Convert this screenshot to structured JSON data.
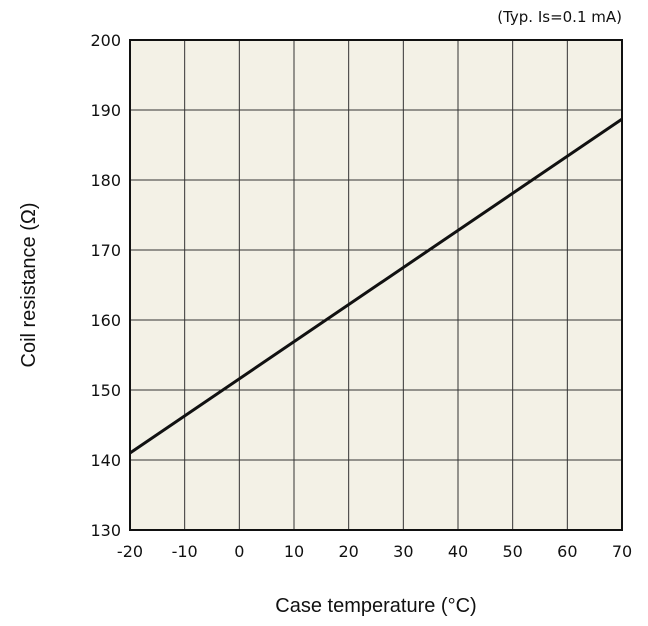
{
  "chart_data": {
    "type": "line",
    "annotation": "(Typ. Is=0.1 mA)",
    "xlabel": "Case temperature (°C)",
    "ylabel": "Coil resistance (Ω)",
    "xlim": [
      -20,
      70
    ],
    "ylim": [
      130,
      200
    ],
    "xticks": [
      -20,
      -10,
      0,
      10,
      20,
      30,
      40,
      50,
      60,
      70
    ],
    "yticks": [
      130,
      140,
      150,
      160,
      170,
      180,
      190,
      200
    ],
    "grid": true,
    "plot_background": "#f3f1e6",
    "line_color": "#111111",
    "series": [
      {
        "x": [
          -20,
          70
        ],
        "y": [
          141,
          188.7
        ]
      }
    ]
  }
}
